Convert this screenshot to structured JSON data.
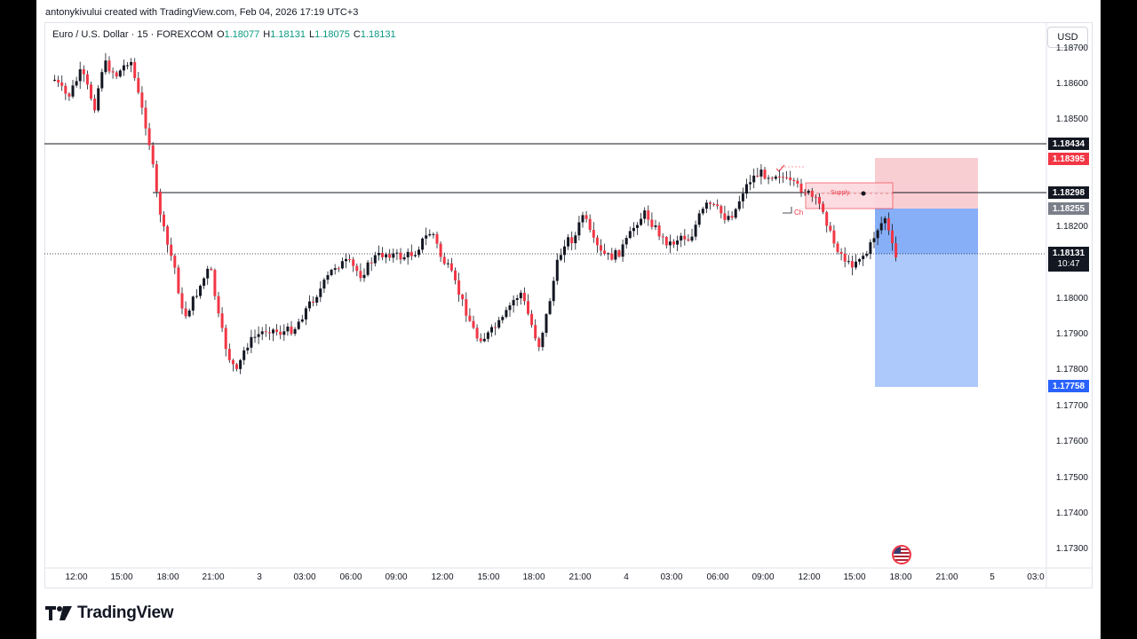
{
  "header": {
    "credit": "antonykivului created with TradingView.com, Feb 04, 2026 17:19 UTC+3"
  },
  "legend": {
    "symbol": "Euro / U.S. Dollar · 15 · FOREXCOM",
    "o_label": "O",
    "o": "1.18077",
    "h_label": "H",
    "h": "1.18131",
    "l_label": "L",
    "l": "1.18075",
    "c_label": "C",
    "c": "1.18131"
  },
  "currency_button": "USD",
  "price_axis": {
    "labels": [
      "1.18700",
      "1.18600",
      "1.18500",
      "1.18200",
      "1.18000",
      "1.17900",
      "1.17800",
      "1.17700",
      "1.17600",
      "1.17500",
      "1.17400",
      "1.17300"
    ]
  },
  "price_badges": {
    "resistance": "1.18434",
    "stop_loss": "1.18395",
    "level_2": "1.18298",
    "entry": "1.18255",
    "current": "1.18131",
    "countdown": "10:47",
    "take_profit": "1.17758"
  },
  "time_axis": {
    "labels": [
      "12:00",
      "15:00",
      "18:00",
      "21:00",
      "3",
      "03:00",
      "06:00",
      "09:00",
      "12:00",
      "15:00",
      "18:00",
      "21:00",
      "4",
      "03:00",
      "06:00",
      "09:00",
      "12:00",
      "15:00",
      "18:00",
      "21:00",
      "5",
      "03:0"
    ]
  },
  "drawing": {
    "supply_label": "Supply",
    "ch_label": "Ch"
  },
  "brand": {
    "name": "TradingView"
  },
  "colors": {
    "up": "#089981",
    "down": "#f23645",
    "stop_zone": "#f7b8be",
    "target_zone": "#a9c6fb",
    "target_zone_dark": "#7aa6f7",
    "tp_badge": "#2962ff",
    "sl_badge": "#f23645",
    "line": "#131722"
  },
  "icons": {
    "logo": "tradingview-logo-icon",
    "event": "us-flag-icon"
  }
}
